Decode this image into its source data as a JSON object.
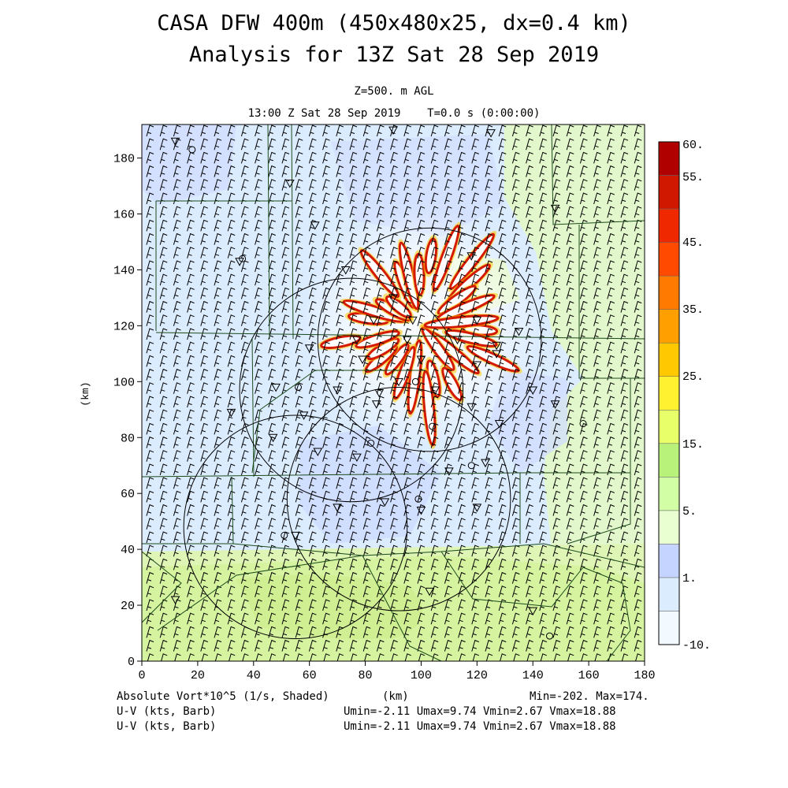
{
  "title_line1": "CASA DFW 400m (450x480x25, dx=0.4 km)",
  "title_line2": "Analysis for 13Z Sat 28 Sep 2019",
  "subtitle_line1": "Z=500. m AGL",
  "subtitle_line2": "13:00 Z Sat 28 Sep 2019    T=0.0 s (0:00:00)",
  "footer": {
    "field_label": "Absolute Vort*10^5 (1/s, Shaded)",
    "x_unit_label": "(km)",
    "minmax": "Min=-202. Max=174.",
    "barb_label_1": "U-V (kts, Barb)",
    "barb_label_2": "U-V (kts, Barb)",
    "barb_stats_1": "Umin=-2.11 Umax=9.74 Vmin=2.67 Vmax=18.88",
    "barb_stats_2": "Umin=-2.11 Umax=9.74 Vmin=2.67 Vmax=18.88"
  },
  "chart_data": {
    "type": "heatmap",
    "xlabel": "(km)",
    "ylabel": "(km)",
    "xlim": [
      0,
      180
    ],
    "ylim": [
      0,
      192
    ],
    "x_ticks": [
      0,
      20,
      40,
      60,
      80,
      100,
      120,
      140,
      160,
      180
    ],
    "y_ticks": [
      0,
      20,
      40,
      60,
      80,
      100,
      120,
      140,
      160,
      180
    ],
    "colorbar": {
      "labels": [
        "60.",
        "55.",
        "45.",
        "35.",
        "25.",
        "15.",
        "5.",
        "1.",
        "-10."
      ],
      "colors": [
        "#f2faff",
        "#dcecff",
        "#c5d3ff",
        "#e9ffd2",
        "#d2ffa6",
        "#b8f27a",
        "#e8ff6a",
        "#fff030",
        "#ffc800",
        "#ff9f00",
        "#ff7a00",
        "#ff4a00",
        "#f02800",
        "#d01800",
        "#b00000"
      ]
    },
    "radar_circles_km": [
      {
        "x": 103,
        "y": 115,
        "r": 40
      },
      {
        "x": 75,
        "y": 97,
        "r": 40
      },
      {
        "x": 55,
        "y": 48,
        "r": 40
      },
      {
        "x": 92,
        "y": 58,
        "r": 40
      }
    ],
    "vorticity_hotspot_km": {
      "x": 100,
      "y": 120
    },
    "range_min": -202,
    "range_max": 174
  }
}
